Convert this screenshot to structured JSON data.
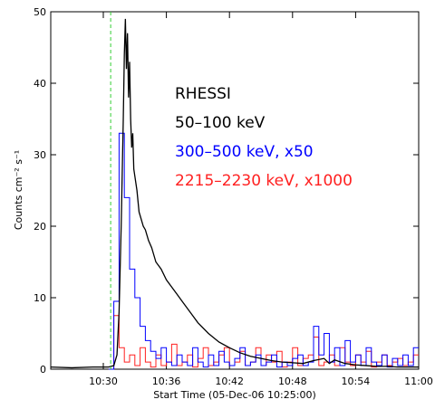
{
  "chart_data": {
    "type": "line",
    "xlabel": "Start Time (05-Dec-06 10:25:00)",
    "ylabel": "Counts cm⁻² s⁻¹",
    "legend_title": "RHESSI",
    "xlim": [
      0,
      35
    ],
    "ylim": [
      0,
      50
    ],
    "xticks": [
      {
        "value": 5,
        "label": "10:30"
      },
      {
        "value": 11,
        "label": "10:36"
      },
      {
        "value": 17,
        "label": "10:42"
      },
      {
        "value": 23,
        "label": "10:48"
      },
      {
        "value": 29,
        "label": "10:54"
      },
      {
        "value": 35,
        "label": "11:00"
      }
    ],
    "yticks": [
      0,
      10,
      20,
      30,
      40,
      50
    ],
    "vline": {
      "x": 5.7,
      "color": "#33cc33"
    },
    "series": [
      {
        "name": "50–100 keV",
        "color": "#000000",
        "x": [
          0,
          2,
          4,
          5.5,
          6.0,
          6.3,
          6.5,
          6.7,
          6.9,
          7.0,
          7.1,
          7.2,
          7.3,
          7.4,
          7.5,
          7.6,
          7.7,
          7.8,
          7.9,
          8.0,
          8.2,
          8.4,
          8.6,
          8.8,
          9.0,
          9.3,
          9.6,
          10.0,
          10.5,
          11,
          11.5,
          12,
          12.5,
          13,
          13.5,
          14,
          15,
          16,
          17,
          18,
          19,
          20,
          21,
          22,
          23,
          24,
          25,
          26,
          26.5,
          27,
          28,
          29,
          30,
          31,
          32,
          33,
          34,
          35
        ],
        "values": [
          0.3,
          0.2,
          0.3,
          0.3,
          0.5,
          2,
          8,
          20,
          35,
          44,
          49,
          42,
          47,
          38,
          43,
          35,
          31,
          33,
          28,
          27,
          25,
          22,
          21,
          20,
          19.5,
          18,
          17,
          15,
          14,
          12.5,
          11.5,
          10.5,
          9.5,
          8.5,
          7.5,
          6.5,
          5,
          3.8,
          3.0,
          2.3,
          1.8,
          1.5,
          1.2,
          1.0,
          0.9,
          0.8,
          1.2,
          1.5,
          0.8,
          1.3,
          0.8,
          0.6,
          0.5,
          0.4,
          0.4,
          0.3,
          0.3,
          0.3
        ]
      },
      {
        "name": "300–500 keV, x50",
        "color": "#0000ff",
        "bins": [
          5.5,
          6.0,
          6.5,
          7.0,
          7.5,
          8.0,
          8.5,
          9.0,
          9.5,
          10,
          10.5,
          11,
          11.5,
          12,
          12.5,
          13,
          13.5,
          14,
          14.5,
          15,
          15.5,
          16,
          16.5,
          17,
          17.5,
          18,
          18.5,
          19,
          19.5,
          20,
          20.5,
          21,
          21.5,
          22,
          22.5,
          23,
          23.5,
          24,
          24.5,
          25,
          25.5,
          26,
          26.5,
          27,
          27.5,
          28,
          28.5,
          29,
          29.5,
          30,
          30.5,
          31,
          31.5,
          32,
          32.5,
          33,
          33.5,
          34,
          34.5,
          35
        ],
        "values": [
          0,
          9.5,
          33,
          24,
          14,
          10,
          6,
          4,
          2.5,
          1.5,
          3,
          1,
          0.5,
          2,
          1,
          0.5,
          3,
          1,
          0.3,
          2,
          0.5,
          2.5,
          1,
          0.5,
          1.5,
          3,
          0.5,
          1,
          2,
          0.5,
          1,
          2,
          0.3,
          1,
          0.5,
          1.5,
          2,
          0.5,
          1,
          6,
          2,
          5,
          1,
          3,
          0.5,
          4,
          1,
          2,
          0.5,
          3,
          1,
          0.5,
          2,
          0.3,
          1.5,
          0.5,
          2,
          0.5,
          3
        ]
      },
      {
        "name": "2215–2230 keV, x1000",
        "color": "#ff2020",
        "bins": [
          5.5,
          6.0,
          6.5,
          7.0,
          7.5,
          8.0,
          8.5,
          9.0,
          9.5,
          10,
          10.5,
          11,
          11.5,
          12,
          12.5,
          13,
          13.5,
          14,
          14.5,
          15,
          15.5,
          16,
          16.5,
          17,
          17.5,
          18,
          18.5,
          19,
          19.5,
          20,
          20.5,
          21,
          21.5,
          22,
          22.5,
          23,
          23.5,
          24,
          24.5,
          25,
          25.5,
          26,
          26.5,
          27,
          27.5,
          28,
          28.5,
          29,
          29.5,
          30,
          30.5,
          31,
          31.5,
          32,
          32.5,
          33,
          33.5,
          34,
          34.5,
          35
        ],
        "values": [
          0,
          7.5,
          3,
          1,
          2,
          0.5,
          3,
          1,
          0.3,
          2,
          0.5,
          1,
          3.5,
          0.5,
          1,
          2,
          0.3,
          1.5,
          3,
          0.5,
          1,
          2,
          3,
          0.5,
          1,
          2.5,
          0.5,
          1,
          3,
          0.5,
          2,
          1,
          2.5,
          0.3,
          1,
          3,
          0.5,
          1.5,
          2,
          4.5,
          0.5,
          1,
          2,
          0.5,
          3,
          1,
          0.5,
          2,
          1,
          2.5,
          0.3,
          1,
          2,
          0.5,
          1,
          1.5,
          0.5,
          1,
          2
        ]
      }
    ]
  }
}
